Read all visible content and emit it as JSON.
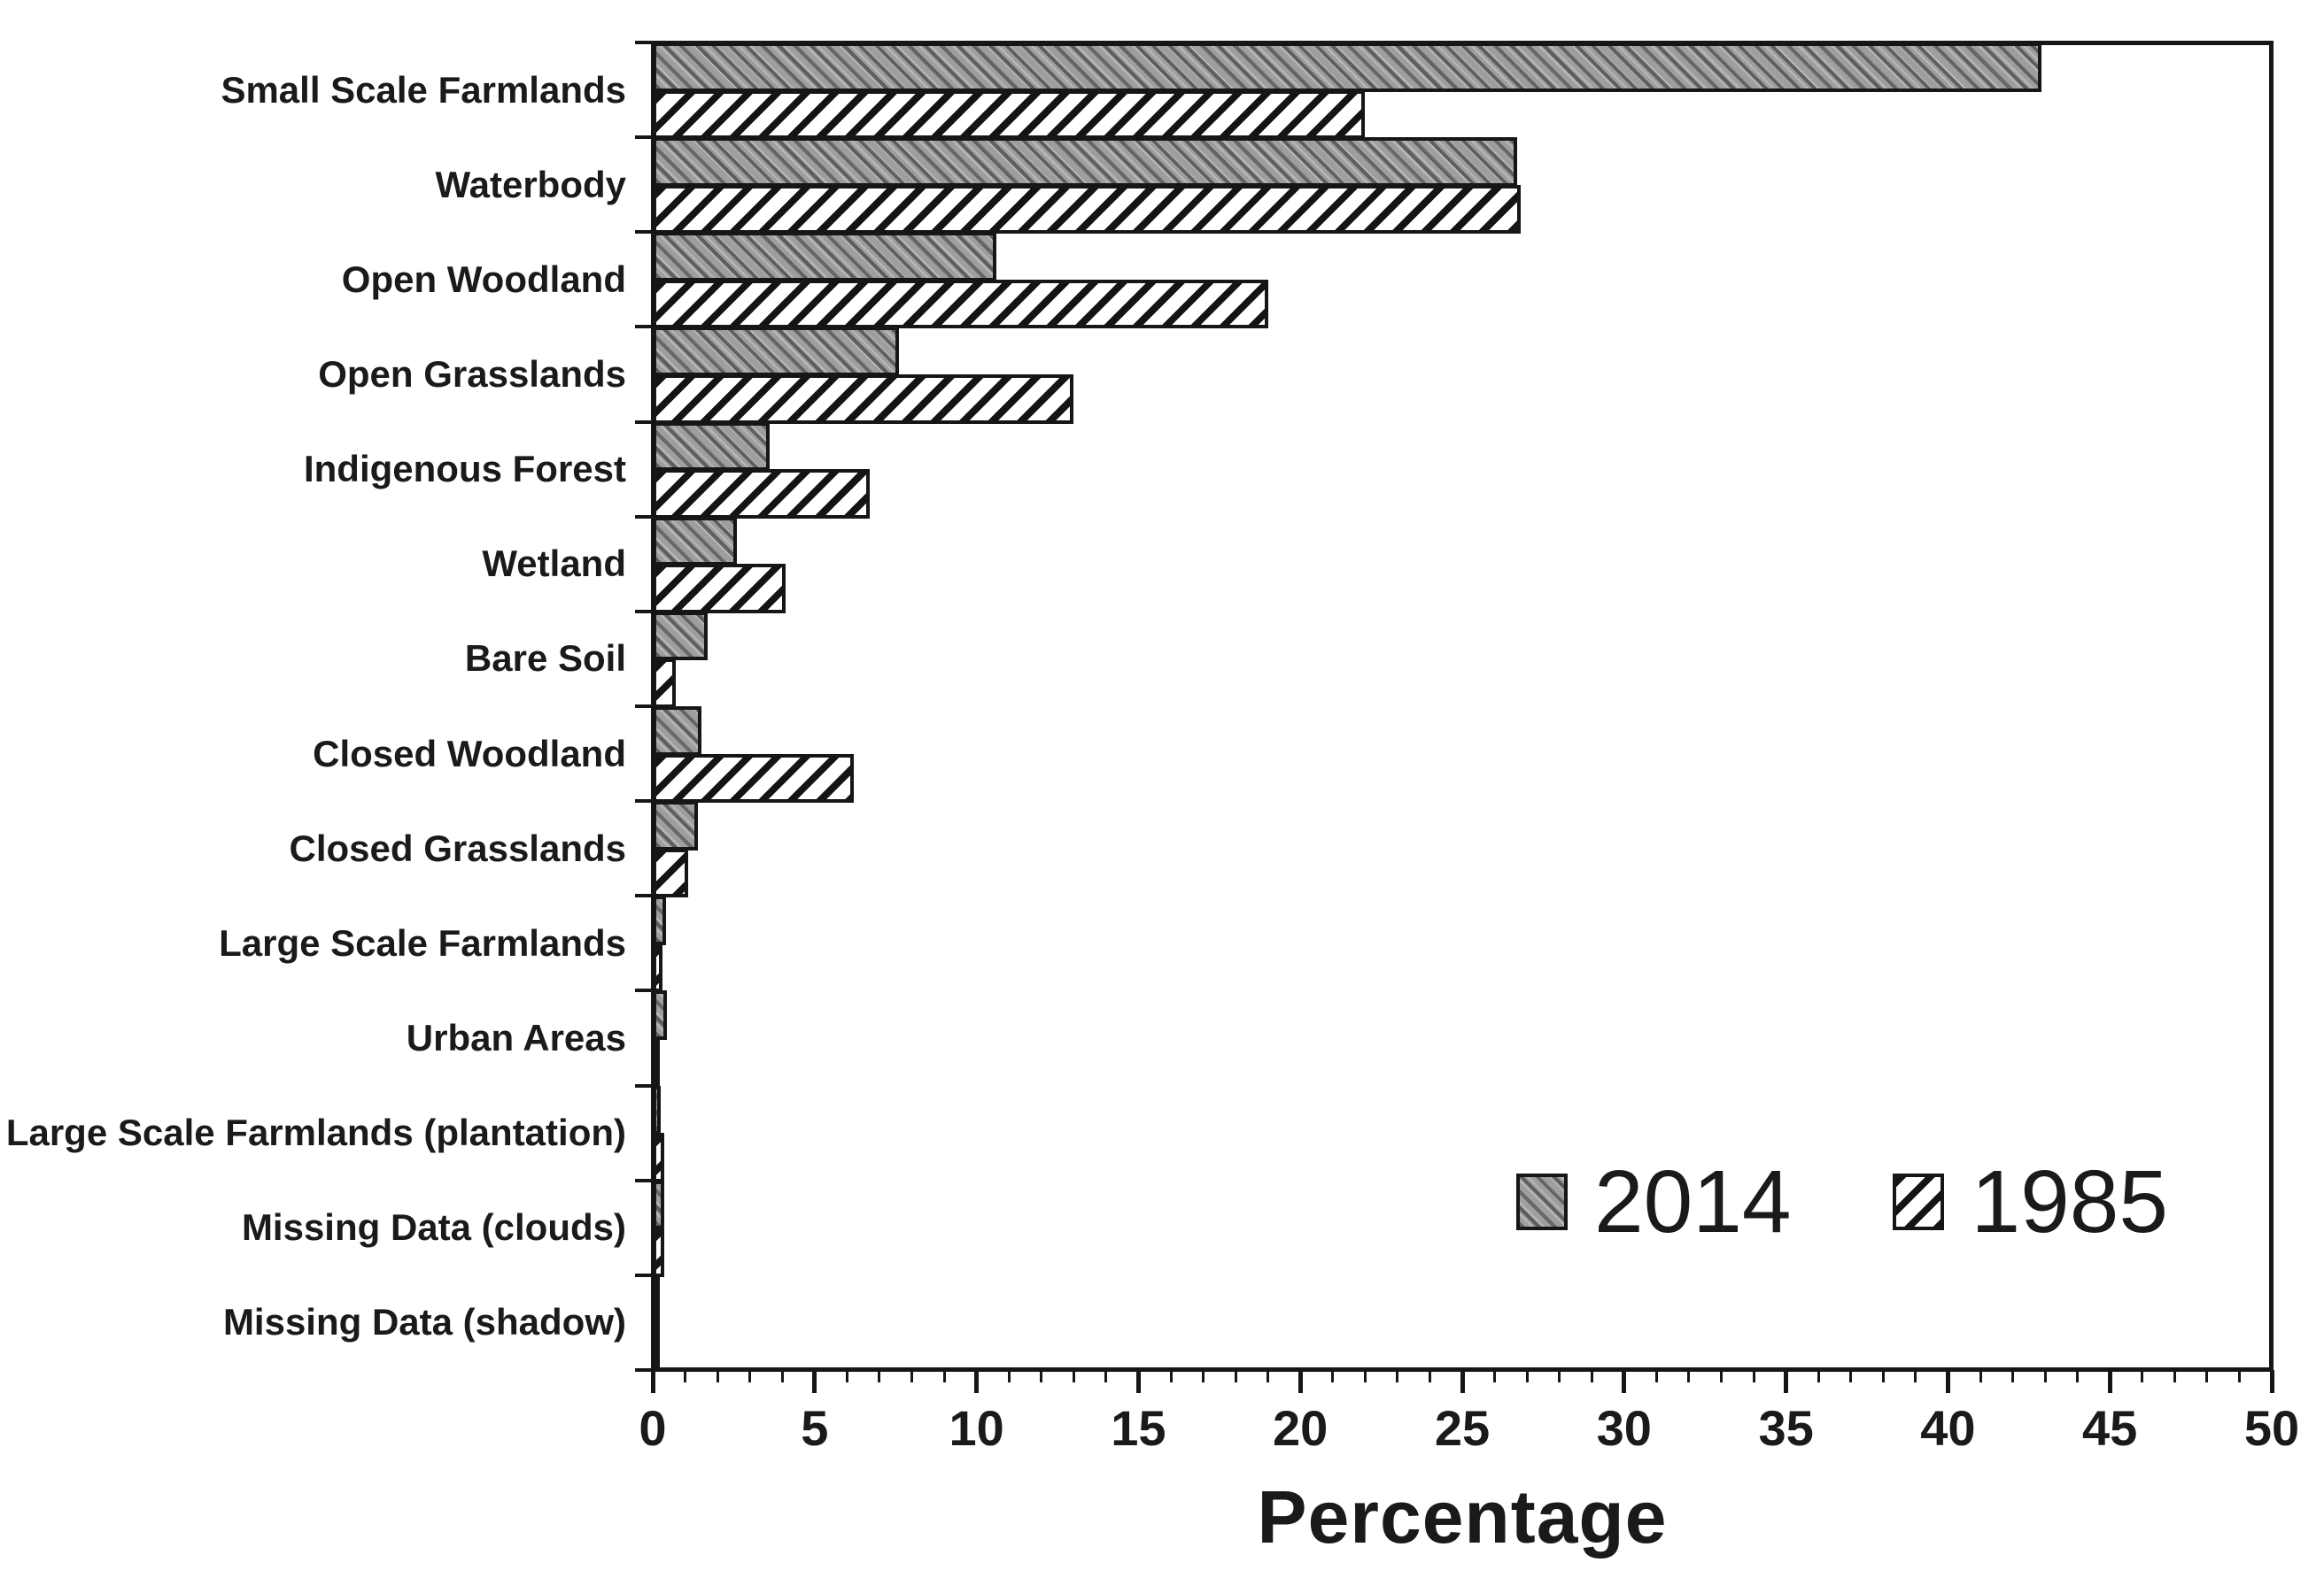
{
  "figure": {
    "background": "#ffffff",
    "ink_color": "#161616",
    "bar_gray_fill": "#9e9e9e",
    "hatch_white_fill": "#ffffff"
  },
  "chart_data": {
    "type": "bar",
    "orientation": "horizontal",
    "title": "",
    "xlabel": "Percentage",
    "ylabel": "",
    "grid": false,
    "categories": [
      "Small Scale Farmlands",
      "Waterbody",
      "Open Woodland",
      "Open Grasslands",
      "Indigenous Forest",
      "Wetland",
      "Bare Soil",
      "Closed Woodland",
      "Closed Grasslands",
      "Large Scale Farmlands",
      "Urban Areas",
      "Large Scale Farmlands (plantation)",
      "Missing Data (clouds)",
      "Missing Data (shadow)"
    ],
    "series": [
      {
        "name": "2014",
        "pattern": "gray-dense-crosshatch",
        "values": [
          42.9,
          26.7,
          10.6,
          7.6,
          3.6,
          2.6,
          1.7,
          1.5,
          1.4,
          0.4,
          0.45,
          0.25,
          0.35,
          0.05
        ]
      },
      {
        "name": "1985",
        "pattern": "black-diagonal-hatch-on-white",
        "values": [
          22.0,
          26.8,
          19.0,
          13.0,
          6.7,
          4.1,
          0.7,
          6.2,
          1.1,
          0.3,
          0.15,
          0.35,
          0.35,
          0.05
        ]
      }
    ],
    "xaxis": {
      "min": 0,
      "max": 50,
      "major_step": 5,
      "minor_step": 1,
      "tick_labels": [
        "0",
        "5",
        "10",
        "15",
        "20",
        "25",
        "30",
        "35",
        "40",
        "45",
        "50"
      ]
    },
    "legend": {
      "position": "inside-lower-right",
      "labels": [
        "2014",
        "1985"
      ]
    }
  }
}
